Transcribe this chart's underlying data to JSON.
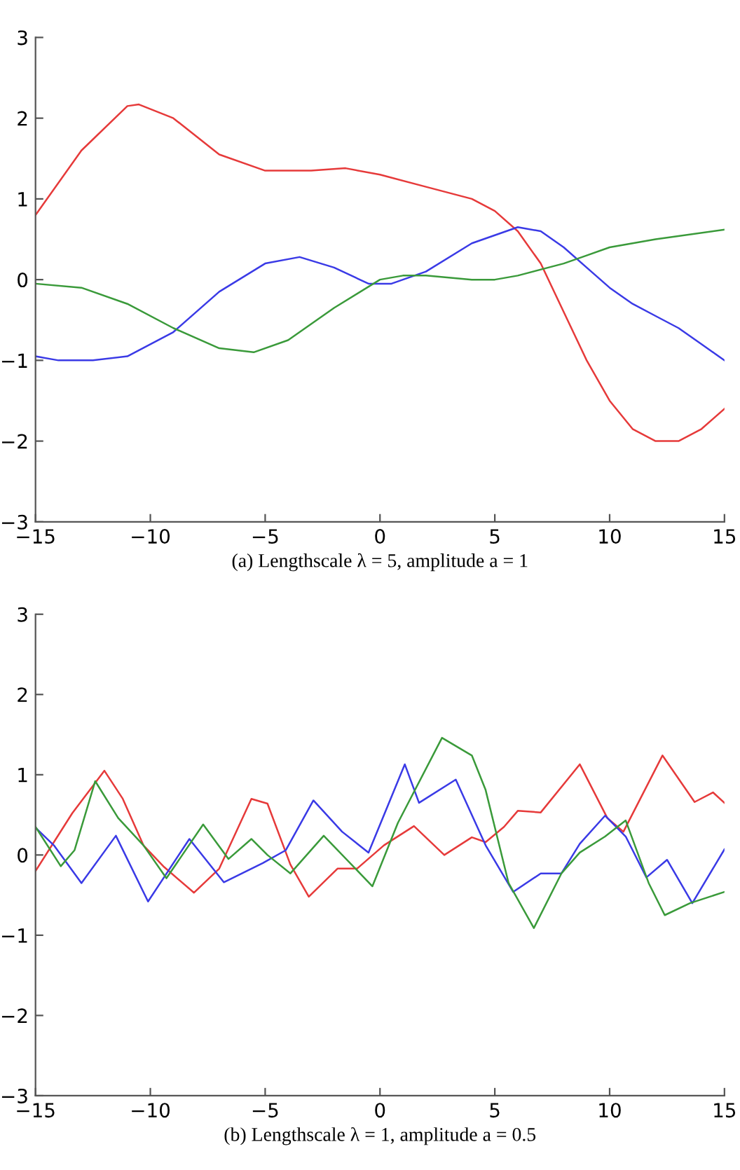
{
  "chart_data": [
    {
      "type": "line",
      "xlabel": "(a) Lengthscale λ = 5, amplitude a = 1",
      "xlim": [
        -15,
        15
      ],
      "ylim": [
        -3,
        3
      ],
      "xticks": [
        -15,
        -10,
        -5,
        0,
        5,
        10,
        15
      ],
      "yticks": [
        -3,
        -2,
        -1,
        0,
        1,
        2,
        3
      ],
      "grid": false,
      "legend": false,
      "marker": "none",
      "line_style": "solid",
      "series": [
        {
          "color": "#e63a3a",
          "x": [
            -15,
            -13,
            -11,
            -10.5,
            -9,
            -7,
            -5,
            -3,
            -1.5,
            0,
            2,
            4,
            5,
            6,
            7,
            8,
            9,
            10,
            11,
            12,
            13,
            14,
            15
          ],
          "values": [
            0.8,
            1.6,
            2.15,
            2.17,
            2.0,
            1.55,
            1.35,
            1.35,
            1.38,
            1.3,
            1.15,
            1.0,
            0.85,
            0.6,
            0.2,
            -0.4,
            -1.0,
            -1.5,
            -1.85,
            -2.0,
            -2.0,
            -1.85,
            -1.6
          ]
        },
        {
          "color": "#3a3ae6",
          "x": [
            -15,
            -14,
            -12.5,
            -11,
            -9,
            -7,
            -5,
            -3.5,
            -2,
            -0.5,
            0.5,
            2,
            4,
            6,
            7,
            8,
            9,
            10,
            11,
            12,
            13,
            14,
            15
          ],
          "values": [
            -0.95,
            -1.0,
            -1.0,
            -0.95,
            -0.65,
            -0.15,
            0.2,
            0.28,
            0.15,
            -0.05,
            -0.05,
            0.1,
            0.45,
            0.65,
            0.6,
            0.4,
            0.15,
            -0.1,
            -0.3,
            -0.45,
            -0.6,
            -0.8,
            -1.0
          ]
        },
        {
          "color": "#3a9a3a",
          "x": [
            -15,
            -13,
            -11,
            -9,
            -7,
            -5.5,
            -4,
            -2,
            0,
            1,
            2,
            4,
            5,
            6,
            8,
            9,
            10,
            12,
            15
          ],
          "values": [
            -0.05,
            -0.1,
            -0.3,
            -0.6,
            -0.85,
            -0.9,
            -0.75,
            -0.35,
            0.0,
            0.05,
            0.05,
            0.0,
            0.0,
            0.05,
            0.2,
            0.3,
            0.4,
            0.5,
            0.62
          ]
        }
      ]
    },
    {
      "type": "line",
      "xlabel": "(b) Lengthscale λ = 1, amplitude a = 0.5",
      "xlim": [
        -15,
        15
      ],
      "ylim": [
        -3,
        3
      ],
      "xticks": [
        -15,
        -10,
        -5,
        0,
        5,
        10,
        15
      ],
      "yticks": [
        -3,
        -2,
        -1,
        0,
        1,
        2,
        3
      ],
      "grid": false,
      "legend": false,
      "marker": "none",
      "line_style": "solid",
      "series": [
        {
          "color": "#e63a3a",
          "x": [
            -15,
            -13.4,
            -12.0,
            -11.2,
            -10.3,
            -9.4,
            -8.1,
            -7.0,
            -5.6,
            -4.9,
            -3.9,
            -3.1,
            -1.85,
            -1.0,
            0.17,
            1.48,
            2.8,
            4.0,
            4.6,
            5.4,
            6.0,
            7.0,
            8.7,
            9.9,
            10.6,
            12.3,
            13.7,
            14.5,
            15
          ],
          "values": [
            -0.2,
            0.52,
            1.05,
            0.7,
            0.12,
            -0.15,
            -0.47,
            -0.17,
            0.7,
            0.64,
            -0.12,
            -0.52,
            -0.17,
            -0.17,
            0.12,
            0.36,
            0.0,
            0.22,
            0.16,
            0.35,
            0.55,
            0.53,
            1.13,
            0.46,
            0.29,
            1.24,
            0.66,
            0.78,
            0.65
          ]
        },
        {
          "color": "#3a3ae6",
          "x": [
            -15,
            -14.2,
            -13.0,
            -11.5,
            -10.1,
            -8.3,
            -6.8,
            -5.1,
            -4.1,
            -2.9,
            -1.65,
            -0.5,
            1.08,
            1.7,
            3.3,
            4.6,
            5.8,
            7.0,
            7.9,
            8.7,
            9.8,
            10.7,
            11.6,
            12.5,
            13.6,
            15
          ],
          "values": [
            0.34,
            0.12,
            -0.35,
            0.24,
            -0.58,
            0.2,
            -0.34,
            -0.1,
            0.06,
            0.68,
            0.29,
            0.03,
            1.13,
            0.65,
            0.94,
            0.12,
            -0.46,
            -0.23,
            -0.23,
            0.14,
            0.49,
            0.23,
            -0.28,
            -0.06,
            -0.6,
            0.07
          ]
        },
        {
          "color": "#3a9a3a",
          "x": [
            -15,
            -13.9,
            -13.3,
            -12.4,
            -11.4,
            -10.3,
            -9.3,
            -7.7,
            -6.6,
            -5.6,
            -4.9,
            -3.9,
            -2.45,
            -0.33,
            0.78,
            2.7,
            4.0,
            4.6,
            5.6,
            6.7,
            7.9,
            8.7,
            9.8,
            10.7,
            11.7,
            12.4,
            13.5,
            15
          ],
          "values": [
            0.35,
            -0.14,
            0.06,
            0.92,
            0.46,
            0.12,
            -0.29,
            0.38,
            -0.05,
            0.2,
            0.0,
            -0.23,
            0.24,
            -0.39,
            0.4,
            1.46,
            1.24,
            0.81,
            -0.35,
            -0.91,
            -0.23,
            0.03,
            0.23,
            0.43,
            -0.35,
            -0.75,
            -0.6,
            -0.46
          ]
        }
      ]
    }
  ]
}
